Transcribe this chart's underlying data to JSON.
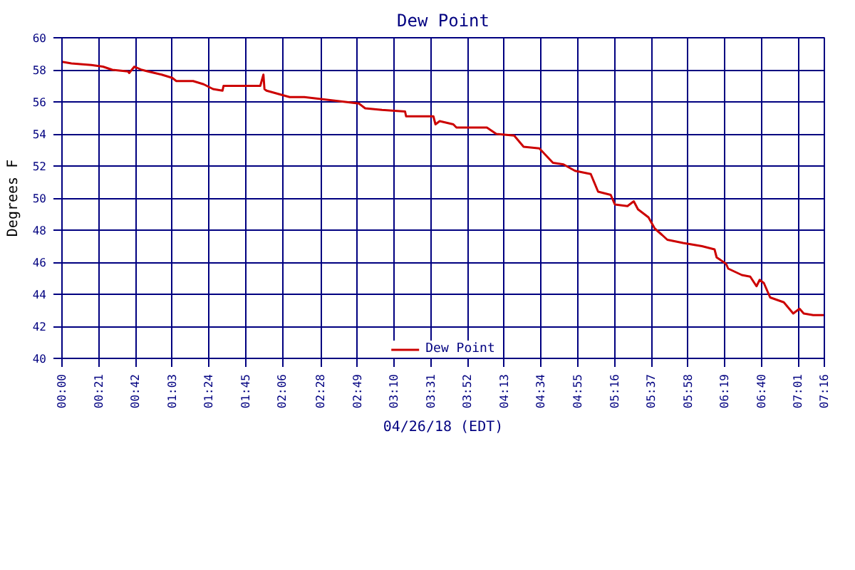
{
  "chart_data": {
    "type": "line",
    "title": "Dew Point",
    "xlabel": "04/26/18 (EDT)",
    "ylabel": "Degrees F",
    "x": [
      0,
      0.09,
      0.28,
      0.39,
      0.48,
      0.63,
      0.64,
      0.69,
      0.76,
      0.82,
      0.95,
      1.05,
      1.09,
      1.25,
      1.35,
      1.44,
      1.53,
      1.54,
      1.89,
      1.92,
      1.93,
      1.95,
      2.06,
      2.17,
      2.31,
      2.44,
      2.57,
      2.83,
      2.89,
      3.05,
      3.27,
      3.28,
      3.54,
      3.56,
      3.6,
      3.73,
      3.76,
      4.05,
      4.14,
      4.31,
      4.4,
      4.55,
      4.68,
      4.78,
      4.89,
      5.04,
      5.11,
      5.23,
      5.27,
      5.39,
      5.45,
      5.49,
      5.59,
      5.65,
      5.72,
      5.77,
      5.92,
      6.1,
      6.22,
      6.24,
      6.33,
      6.35,
      6.48,
      6.56,
      6.62,
      6.65,
      6.69,
      6.75,
      6.88,
      6.97,
      7.03,
      7.07,
      7.16,
      7.26
    ],
    "series": [
      {
        "name": "Dew Point",
        "color": "#cc0000",
        "values": [
          58.5,
          58.4,
          58.3,
          58.2,
          58.0,
          57.9,
          57.8,
          58.2,
          58.0,
          57.9,
          57.7,
          57.5,
          57.3,
          57.3,
          57.1,
          56.8,
          56.7,
          57.0,
          57.0,
          57.7,
          56.8,
          56.7,
          56.5,
          56.3,
          56.3,
          56.2,
          56.1,
          55.9,
          55.6,
          55.5,
          55.4,
          55.1,
          55.1,
          54.6,
          54.8,
          54.6,
          54.4,
          54.4,
          54.0,
          53.9,
          53.2,
          53.1,
          52.2,
          52.1,
          51.7,
          51.5,
          50.4,
          50.2,
          49.6,
          49.5,
          49.8,
          49.3,
          48.8,
          48.1,
          47.7,
          47.4,
          47.2,
          47.0,
          46.8,
          46.3,
          45.9,
          45.6,
          45.2,
          45.1,
          44.5,
          44.9,
          44.7,
          43.8,
          43.5,
          42.8,
          43.1,
          42.8,
          42.7,
          42.7
        ]
      }
    ],
    "xlim": [
      0,
      7.2667
    ],
    "xticks": [
      {
        "value": 0,
        "label": "00:00"
      },
      {
        "value": 0.35,
        "label": "00:21"
      },
      {
        "value": 0.7,
        "label": "00:42"
      },
      {
        "value": 1.05,
        "label": "01:03"
      },
      {
        "value": 1.4,
        "label": "01:24"
      },
      {
        "value": 1.75,
        "label": "01:45"
      },
      {
        "value": 2.1,
        "label": "02:06"
      },
      {
        "value": 2.4667,
        "label": "02:28"
      },
      {
        "value": 2.8167,
        "label": "02:49"
      },
      {
        "value": 3.1667,
        "label": "03:10"
      },
      {
        "value": 3.5167,
        "label": "03:31"
      },
      {
        "value": 3.8667,
        "label": "03:52"
      },
      {
        "value": 4.2167,
        "label": "04:13"
      },
      {
        "value": 4.5667,
        "label": "04:34"
      },
      {
        "value": 4.9167,
        "label": "04:55"
      },
      {
        "value": 5.2667,
        "label": "05:16"
      },
      {
        "value": 5.6167,
        "label": "05:37"
      },
      {
        "value": 5.9667,
        "label": "05:58"
      },
      {
        "value": 6.3167,
        "label": "06:19"
      },
      {
        "value": 6.6667,
        "label": "06:40"
      },
      {
        "value": 7.0167,
        "label": "07:01"
      },
      {
        "value": 7.2667,
        "label": "07:16"
      }
    ],
    "ylim": [
      40,
      60
    ],
    "yticks": [
      40,
      42,
      44,
      46,
      48,
      50,
      52,
      54,
      56,
      58,
      60
    ],
    "grid": true,
    "legend": "bottom",
    "marker": "none",
    "line_style": "solid"
  }
}
